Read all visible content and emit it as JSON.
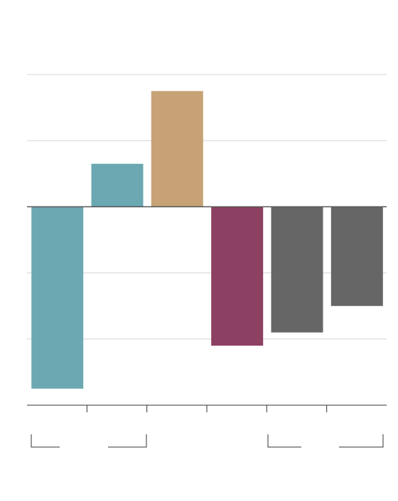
{
  "chart_data": {
    "type": "bar",
    "categories": [
      "",
      "",
      "",
      "",
      "",
      ""
    ],
    "values": [
      -27.5,
      6.5,
      17.5,
      -21,
      -19,
      -15
    ],
    "colors": [
      "#6ba8b2",
      "#6ba8b2",
      "#c6a276",
      "#8c4062",
      "#666666",
      "#666666"
    ],
    "ylim": [
      -30,
      20
    ],
    "grid_values": [
      -20,
      -10,
      10,
      20
    ],
    "grid": true,
    "title": "",
    "xlabel": "",
    "ylabel": ""
  }
}
